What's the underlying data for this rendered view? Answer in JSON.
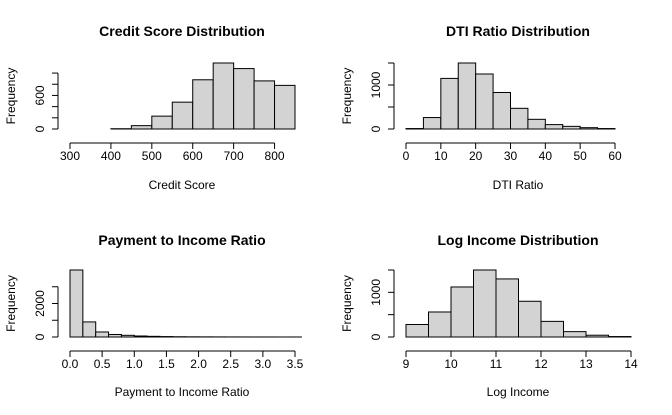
{
  "chart_data": [
    {
      "type": "bar",
      "title": "Credit Score Distribution",
      "xlabel": "Credit Score",
      "ylabel": "Frequency",
      "xlim": [
        300,
        850
      ],
      "ylim": [
        0,
        1180
      ],
      "xticks": [
        300,
        400,
        500,
        600,
        700,
        800
      ],
      "yticks": [
        0,
        600
      ],
      "yticks_unlabeled": [
        200,
        400,
        800,
        1000
      ],
      "bin_edges": [
        300,
        350,
        400,
        450,
        500,
        550,
        600,
        650,
        700,
        750,
        800,
        850
      ],
      "counts": [
        0,
        0,
        5,
        60,
        230,
        480,
        880,
        1180,
        1080,
        860,
        780
      ]
    },
    {
      "type": "bar",
      "title": "DTI Ratio Distribution",
      "xlabel": "DTI Ratio",
      "ylabel": "Frequency",
      "xlim": [
        0,
        60
      ],
      "ylim": [
        0,
        1500
      ],
      "xticks": [
        0,
        10,
        20,
        30,
        40,
        50,
        60
      ],
      "yticks": [
        0,
        1000
      ],
      "yticks_unlabeled": [
        500,
        1500
      ],
      "bin_edges": [
        0,
        5,
        10,
        15,
        20,
        25,
        30,
        35,
        40,
        45,
        50,
        55,
        60
      ],
      "counts": [
        10,
        260,
        1150,
        1500,
        1250,
        830,
        470,
        220,
        100,
        60,
        30,
        10
      ]
    },
    {
      "type": "bar",
      "title": "Payment to Income Ratio",
      "xlabel": "Payment to Income Ratio",
      "ylabel": "Frequency",
      "xlim": [
        0,
        3.5
      ],
      "ylim": [
        0,
        4000
      ],
      "xticks": [
        0.0,
        0.5,
        1.0,
        1.5,
        2.0,
        2.5,
        3.0,
        3.5
      ],
      "xtick_labels": [
        "0.0",
        "0.5",
        "1.0",
        "1.5",
        "2.0",
        "2.5",
        "3.0",
        "3.5"
      ],
      "yticks": [
        0,
        2000
      ],
      "yticks_unlabeled": [
        1000,
        3000
      ],
      "bin_edges": [
        0,
        0.2,
        0.4,
        0.6,
        0.8,
        1.0,
        1.2,
        1.4,
        1.6,
        1.8,
        2.0,
        2.2,
        2.4,
        2.6,
        2.8,
        3.0,
        3.2,
        3.4,
        3.6
      ],
      "counts": [
        4000,
        900,
        300,
        150,
        100,
        60,
        40,
        25,
        15,
        10,
        8,
        6,
        4,
        3,
        2,
        2,
        1,
        1
      ]
    },
    {
      "type": "bar",
      "title": "Log Income Distribution",
      "xlabel": "Log Income",
      "ylabel": "Frequency",
      "xlim": [
        9,
        14
      ],
      "ylim": [
        0,
        1500
      ],
      "xticks": [
        9,
        10,
        11,
        12,
        13,
        14
      ],
      "yticks": [
        0,
        1000
      ],
      "yticks_unlabeled": [
        500,
        1500
      ],
      "bin_edges": [
        9,
        9.5,
        10,
        10.5,
        11,
        11.5,
        12,
        12.5,
        13,
        13.5,
        14
      ],
      "counts": [
        280,
        560,
        1120,
        1500,
        1300,
        800,
        350,
        120,
        40,
        10
      ]
    }
  ]
}
